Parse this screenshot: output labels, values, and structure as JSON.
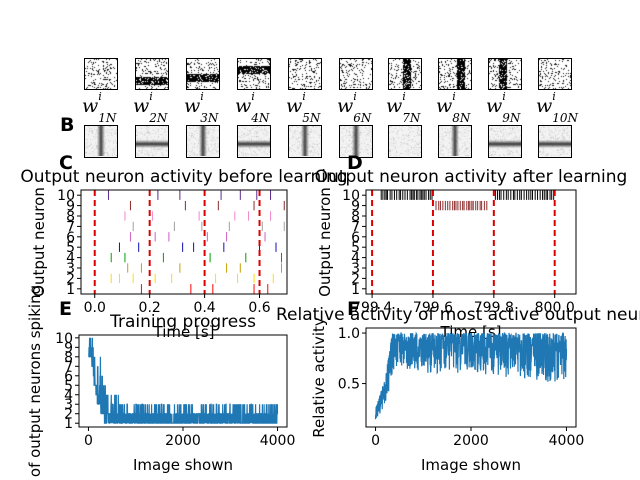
{
  "panels": {
    "a": "",
    "b": "B",
    "c": "C",
    "d": "D",
    "e": "E",
    "f": "F"
  },
  "weights": {
    "labels": [
      {
        "base": "w",
        "sup": "i",
        "sub": "1N"
      },
      {
        "base": "w",
        "sup": "i",
        "sub": "2N"
      },
      {
        "base": "w",
        "sup": "i",
        "sub": "3N"
      },
      {
        "base": "w",
        "sup": "i",
        "sub": "4N"
      },
      {
        "base": "w",
        "sup": "i",
        "sub": "5N"
      },
      {
        "base": "w",
        "sup": "i",
        "sub": "6N"
      },
      {
        "base": "w",
        "sup": "i",
        "sub": "7N"
      },
      {
        "base": "w",
        "sup": "i",
        "sub": "8N"
      },
      {
        "base": "w",
        "sup": "i",
        "sub": "9N"
      },
      {
        "base": "w",
        "sup": "i",
        "sub": "10N"
      }
    ],
    "input_patterns": [
      "noise",
      "horizontal-bar",
      "horizontal-bar",
      "horizontal-bar",
      "noise",
      "noise",
      "vertical-bar",
      "vertical-bar",
      "vertical-bar",
      "noise"
    ],
    "learned_patterns": [
      "vertical-bar",
      "horizontal-bar",
      "vertical-bar",
      "horizontal-bar",
      "vertical-bar",
      "vertical-bar",
      "blank",
      "vertical-bar",
      "horizontal-bar",
      "horizontal-bar"
    ]
  },
  "chart_data": [
    {
      "type": "scatter",
      "id": "C",
      "title": "Output neuron activity before learning",
      "xlabel": "Time [s]",
      "ylabel": "Output neuron",
      "xlim": [
        -0.05,
        0.7
      ],
      "ylim": [
        0.5,
        10.5
      ],
      "xticks": [
        0.0,
        0.2,
        0.4,
        0.6
      ],
      "xtick_labels": [
        "0.0",
        "0.2",
        "0.4",
        "0.6"
      ],
      "yticks": [
        1,
        2,
        3,
        4,
        5,
        6,
        7,
        8,
        9,
        10
      ],
      "ytick_labels": [
        "1",
        "2",
        "3",
        "4",
        "5",
        "6",
        "7",
        "8",
        "9",
        "10"
      ],
      "marker": "vertical-tick",
      "boundaries": [
        0.0,
        0.2,
        0.4,
        0.6
      ],
      "boundary_color": "#dd0000",
      "series": [
        {
          "neuron": 1,
          "color": "#ff0000",
          "x": [
            0.17,
            0.35,
            0.43,
            0.58,
            0.63
          ]
        },
        {
          "neuron": 2,
          "color": "#ffdd00",
          "x": [
            0.06,
            0.09,
            0.14,
            0.22,
            0.28,
            0.44,
            0.52,
            0.58,
            0.65
          ]
        },
        {
          "neuron": 3,
          "color": "#c8a000",
          "x": [
            0.12,
            0.17,
            0.31,
            0.48,
            0.53,
            0.68
          ]
        },
        {
          "neuron": 4,
          "color": "#00a000",
          "x": [
            0.06,
            0.11,
            0.25,
            0.42,
            0.55,
            0.68
          ]
        },
        {
          "neuron": 5,
          "color": "#1010b0",
          "x": [
            0.09,
            0.16,
            0.32,
            0.36,
            0.47,
            0.6,
            0.66
          ]
        },
        {
          "neuron": 6,
          "color": "#d060c0",
          "x": [
            0.13,
            0.22,
            0.27,
            0.41,
            0.48,
            0.62
          ]
        },
        {
          "neuron": 7,
          "color": "#a0a0a0",
          "x": [
            0.14,
            0.29,
            0.39,
            0.49,
            0.61,
            0.69
          ]
        },
        {
          "neuron": 8,
          "color": "#ee88cc",
          "x": [
            0.11,
            0.21,
            0.38,
            0.51,
            0.56,
            0.64
          ]
        },
        {
          "neuron": 9,
          "color": "#8b2a2a",
          "x": [
            0.13,
            0.33,
            0.45,
            0.58,
            0.69
          ]
        },
        {
          "neuron": 10,
          "color": "#5a2a8a",
          "x": [
            0.05,
            0.23,
            0.31,
            0.46,
            0.53,
            0.59,
            0.64
          ]
        }
      ]
    },
    {
      "type": "scatter",
      "id": "D",
      "title": "Output neuron activity after learning",
      "xlabel": "Time [s]",
      "ylabel": "Output neuron",
      "xlim": [
        799.38,
        800.07
      ],
      "ylim": [
        0.5,
        10.5
      ],
      "xticks": [
        799.4,
        799.6,
        799.8,
        800.0
      ],
      "xtick_labels": [
        "799.4",
        "799.6",
        "799.8",
        "800.0"
      ],
      "yticks": [
        1,
        2,
        3,
        4,
        5,
        6,
        7,
        8,
        9,
        10
      ],
      "ytick_labels": [
        "1",
        "2",
        "3",
        "4",
        "5",
        "6",
        "7",
        "8",
        "9",
        "10"
      ],
      "marker": "vertical-tick",
      "boundaries": [
        799.4,
        799.6,
        799.8,
        800.0
      ],
      "boundary_color": "#dd0000",
      "series": [
        {
          "neuron": 10,
          "color": "#000000",
          "x_range": [
            799.43,
            799.6
          ],
          "spike_interval": 0.0065
        },
        {
          "neuron": 9,
          "color": "#8b2a2a",
          "x_range": [
            799.61,
            799.78
          ],
          "spike_interval": 0.0065
        },
        {
          "neuron": 10,
          "color": "#000000",
          "x_range": [
            799.805,
            800.0
          ],
          "spike_interval": 0.0065
        }
      ]
    },
    {
      "type": "line",
      "id": "E",
      "title": "Training progress",
      "xlabel": "Image shown",
      "ylabel": "of output neurons spiking",
      "xlim": [
        -200,
        4200
      ],
      "ylim": [
        0.6,
        10.3
      ],
      "xticks": [
        0,
        2000,
        4000
      ],
      "xtick_labels": [
        "0",
        "2000",
        "4000"
      ],
      "yticks": [
        1,
        2,
        3,
        4,
        5,
        6,
        7,
        8,
        9,
        10
      ],
      "ytick_labels": [
        "1",
        "2",
        "3",
        "4",
        "5",
        "6",
        "7",
        "8",
        "9",
        "10"
      ],
      "color": "#1f77b4",
      "envelope": {
        "x": [
          0,
          40,
          80,
          120,
          160,
          200,
          250,
          300,
          350,
          400,
          600,
          1000,
          2000,
          3000,
          3600,
          4000
        ],
        "low": [
          8,
          8,
          7,
          5,
          4,
          3,
          2,
          2,
          1,
          1,
          1,
          1,
          1,
          1,
          1,
          1
        ],
        "high": [
          10,
          10,
          10,
          9,
          9,
          8,
          8,
          6,
          5,
          4,
          4,
          3,
          3,
          3,
          3,
          3
        ]
      }
    },
    {
      "type": "line",
      "id": "F",
      "title": "Relative activity of most active output neuron",
      "xlabel": "Image shown",
      "ylabel": "Relative activity",
      "xlim": [
        -200,
        4200
      ],
      "ylim": [
        0.07,
        1.05
      ],
      "xticks": [
        0,
        2000,
        4000
      ],
      "xtick_labels": [
        "0",
        "2000",
        "4000"
      ],
      "yticks": [
        0.5,
        1.0
      ],
      "ytick_labels": [
        "0.5",
        "1.0"
      ],
      "color": "#1f77b4",
      "envelope": {
        "x": [
          0,
          100,
          200,
          300,
          350,
          400,
          600,
          1000,
          2000,
          3000,
          3800,
          4000
        ],
        "low": [
          0.13,
          0.2,
          0.3,
          0.45,
          0.6,
          0.65,
          0.65,
          0.6,
          0.6,
          0.55,
          0.5,
          0.55
        ],
        "high": [
          0.25,
          0.4,
          0.55,
          0.85,
          1.0,
          1.0,
          1.0,
          1.0,
          1.0,
          1.0,
          1.0,
          1.0
        ]
      }
    }
  ]
}
